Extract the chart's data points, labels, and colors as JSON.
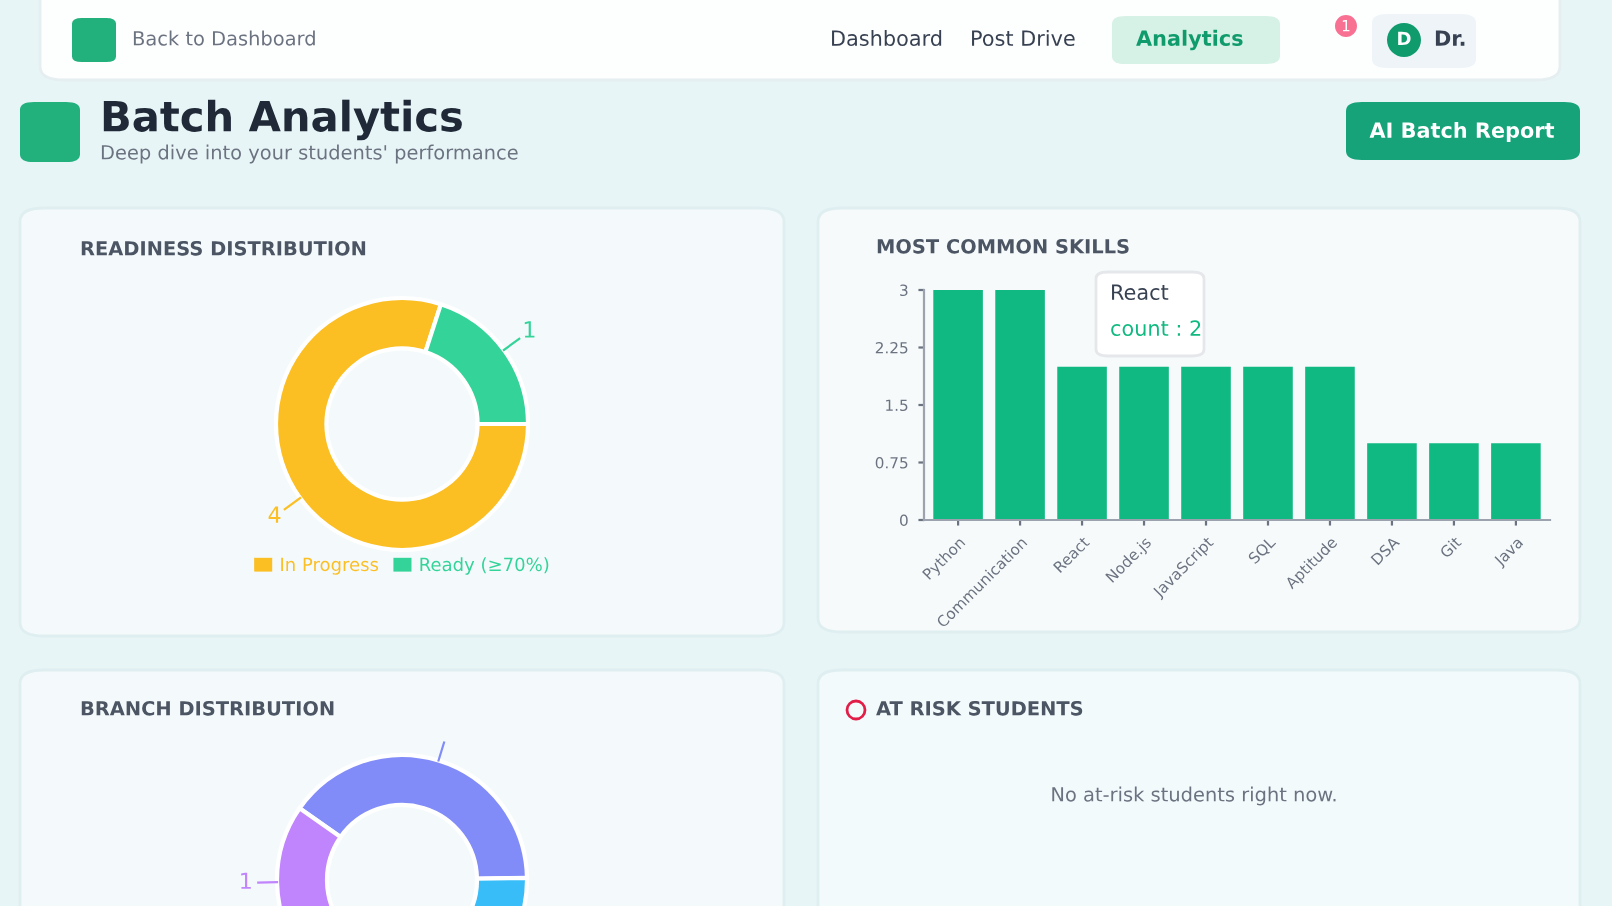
{
  "chart_data": [
    {
      "type": "other",
      "title": "Batch Analytics",
      "subtitle": "Deep dive into your students' performance",
      "annotations": [
        "Back to Dashboard",
        "Dashboard",
        "Post Drive",
        "Analytics",
        "1",
        "D",
        "Dr.",
        "AI Batch Report"
      ]
    },
    {
      "type": "donut",
      "title": "READINESS DISTRIBUTION",
      "categories": [
        "In Progress",
        "Ready (≥70%)"
      ],
      "values": [
        4,
        1
      ],
      "colors": [
        "#fbbf24",
        "#34d399"
      ],
      "data_labels": true,
      "legend": "bottom"
    },
    {
      "type": "bar",
      "title": "MOST COMMON SKILLS",
      "categories": [
        "Python",
        "Communication",
        "React",
        "Node.js",
        "JavaScript",
        "SQL",
        "Aptitude",
        "DSA",
        "Git",
        "Java"
      ],
      "values": [
        3,
        3,
        2,
        2,
        2,
        2,
        2,
        1,
        1,
        1
      ],
      "color": "#10b981",
      "ylim": [
        0,
        3
      ],
      "yticks": [
        0,
        0.75,
        1.5,
        2.25,
        3
      ],
      "grid": false,
      "annotations": [
        "React",
        "count : 2"
      ]
    },
    {
      "type": "donut",
      "title": "BRANCH DISTRIBUTION",
      "categories": [
        null,
        null,
        null
      ],
      "values": [
        2,
        2,
        1
      ],
      "colors": [
        "#818cf8",
        "#38bdf8",
        "#c084fc"
      ],
      "value_labels": [
        null,
        null,
        "1"
      ]
    },
    {
      "type": "other",
      "title": "AT RISK STUDENTS",
      "annotations": [
        "No at-risk students right now."
      ]
    }
  ]
}
